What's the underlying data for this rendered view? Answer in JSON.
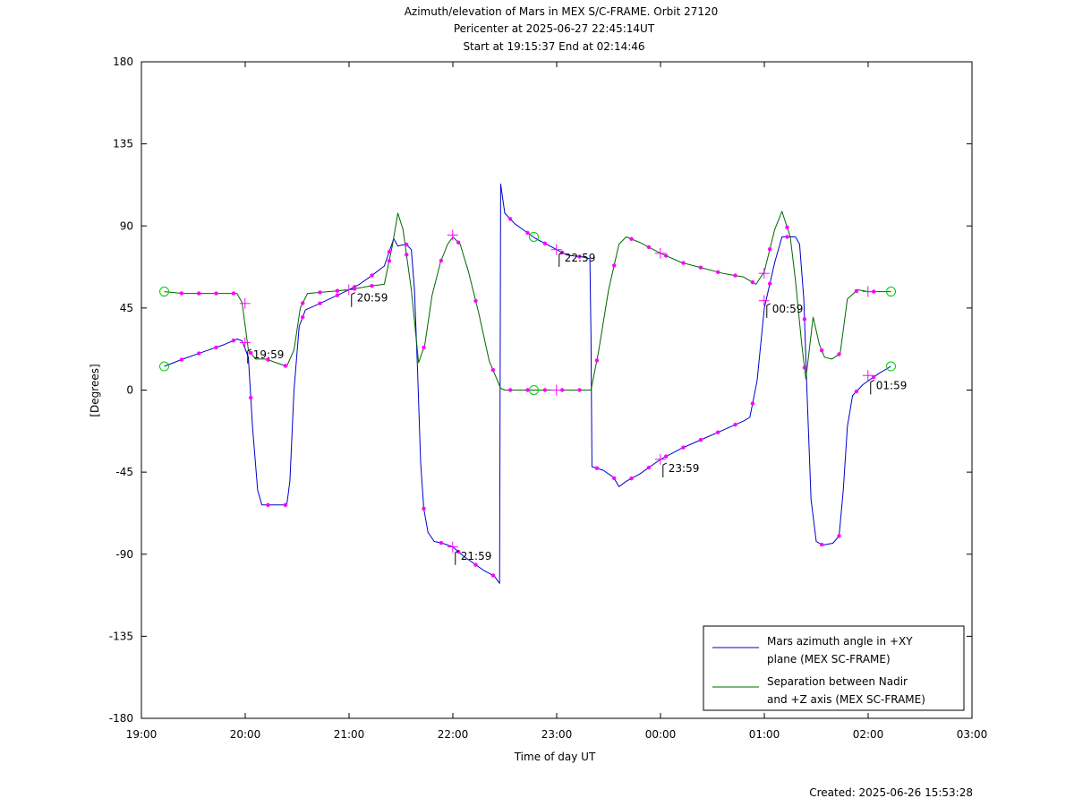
{
  "chart_data": {
    "type": "line",
    "title_lines": [
      "Azimuth/elevation of Mars in MEX S/C-FRAME.  Orbit 27120",
      "Pericenter at 2025-06-27 22:45:14UT",
      "Start at 19:15:37 End at 02:14:46"
    ],
    "xlabel": "Time of day UT",
    "ylabel": "[Degrees]",
    "footer": "Created: 2025-06-26 15:53:28",
    "x_unit": "hours after 19:00 UT",
    "xlim": [
      0,
      8
    ],
    "ylim": [
      -180,
      180
    ],
    "x_ticks": [
      {
        "v": 0,
        "label": "19:00"
      },
      {
        "v": 1,
        "label": "20:00"
      },
      {
        "v": 2,
        "label": "21:00"
      },
      {
        "v": 3,
        "label": "22:00"
      },
      {
        "v": 4,
        "label": "23:00"
      },
      {
        "v": 5,
        "label": "00:00"
      },
      {
        "v": 6,
        "label": "01:00"
      },
      {
        "v": 7,
        "label": "02:00"
      },
      {
        "v": 8,
        "label": "03:00"
      }
    ],
    "y_ticks": [
      {
        "v": 180,
        "label": "180"
      },
      {
        "v": 135,
        "label": "135"
      },
      {
        "v": 90,
        "label": "90"
      },
      {
        "v": 45,
        "label": "45"
      },
      {
        "v": 0,
        "label": "0"
      },
      {
        "v": -45,
        "label": "-45"
      },
      {
        "v": -90,
        "label": "-90"
      },
      {
        "v": -135,
        "label": "-135"
      },
      {
        "v": -180,
        "label": "-180"
      }
    ],
    "legend": {
      "placement": "bottom-right",
      "entries": [
        {
          "lines": [
            "Mars azimuth angle in +XY",
            "plane (MEX SC-FRAME)"
          ],
          "color": "#0000cc"
        },
        {
          "lines": [
            "Separation between Nadir",
            "and +Z axis (MEX SC-FRAME)"
          ],
          "color": "#006600"
        }
      ]
    },
    "series": [
      {
        "name": "Mars azimuth angle in +XY plane (MEX SC-FRAME)",
        "color": "#0000cc",
        "points": [
          [
            0.22,
            13
          ],
          [
            0.4,
            17
          ],
          [
            0.6,
            21
          ],
          [
            0.8,
            25
          ],
          [
            0.92,
            28
          ],
          [
            0.97,
            27
          ],
          [
            1.03,
            18
          ],
          [
            1.07,
            -20
          ],
          [
            1.12,
            -55
          ],
          [
            1.16,
            -63
          ],
          [
            1.3,
            -63
          ],
          [
            1.4,
            -63
          ],
          [
            1.43,
            -50
          ],
          [
            1.47,
            0
          ],
          [
            1.52,
            35
          ],
          [
            1.58,
            44
          ],
          [
            1.7,
            47
          ],
          [
            1.85,
            51
          ],
          [
            2.0,
            55
          ],
          [
            2.1,
            58
          ],
          [
            2.2,
            62
          ],
          [
            2.34,
            68
          ],
          [
            2.4,
            78
          ],
          [
            2.43,
            83
          ],
          [
            2.47,
            79
          ],
          [
            2.55,
            80
          ],
          [
            2.6,
            77
          ],
          [
            2.63,
            55
          ],
          [
            2.66,
            10
          ],
          [
            2.69,
            -40
          ],
          [
            2.72,
            -65
          ],
          [
            2.76,
            -78
          ],
          [
            2.82,
            -83
          ],
          [
            2.9,
            -84
          ],
          [
            3.0,
            -86
          ],
          [
            3.1,
            -91
          ],
          [
            3.2,
            -95
          ],
          [
            3.3,
            -99
          ],
          [
            3.4,
            -102
          ],
          [
            3.45,
            -106
          ],
          [
            3.46,
            113
          ],
          [
            3.5,
            97
          ],
          [
            3.6,
            91
          ],
          [
            3.7,
            87
          ],
          [
            3.8,
            83
          ],
          [
            3.9,
            80
          ],
          [
            4.0,
            77
          ],
          [
            4.1,
            74
          ],
          [
            4.25,
            73
          ],
          [
            4.32,
            72
          ],
          [
            4.33,
            30
          ],
          [
            4.34,
            -42
          ],
          [
            4.45,
            -44
          ],
          [
            4.55,
            -48
          ],
          [
            4.6,
            -53
          ],
          [
            4.67,
            -50
          ],
          [
            4.8,
            -46
          ],
          [
            5.0,
            -38
          ],
          [
            5.2,
            -32
          ],
          [
            5.4,
            -27
          ],
          [
            5.6,
            -22
          ],
          [
            5.8,
            -17
          ],
          [
            5.86,
            -15
          ],
          [
            5.93,
            5
          ],
          [
            6.0,
            45
          ],
          [
            6.1,
            70
          ],
          [
            6.17,
            84
          ],
          [
            6.3,
            84
          ],
          [
            6.34,
            80
          ],
          [
            6.38,
            50
          ],
          [
            6.41,
            0
          ],
          [
            6.45,
            -60
          ],
          [
            6.5,
            -83
          ],
          [
            6.56,
            -85
          ],
          [
            6.66,
            -84
          ],
          [
            6.72,
            -80
          ],
          [
            6.76,
            -55
          ],
          [
            6.8,
            -20
          ],
          [
            6.85,
            -3
          ],
          [
            6.95,
            3
          ],
          [
            7.1,
            9
          ],
          [
            7.22,
            13
          ]
        ]
      },
      {
        "name": "Separation between Nadir and +Z axis (MEX SC-FRAME)",
        "color": "#006600",
        "points": [
          [
            0.22,
            54
          ],
          [
            0.4,
            53
          ],
          [
            0.6,
            53
          ],
          [
            0.8,
            53
          ],
          [
            0.92,
            53
          ],
          [
            0.97,
            48
          ],
          [
            1.03,
            22
          ],
          [
            1.1,
            17
          ],
          [
            1.2,
            17
          ],
          [
            1.3,
            15
          ],
          [
            1.4,
            13
          ],
          [
            1.47,
            22
          ],
          [
            1.53,
            45
          ],
          [
            1.6,
            53
          ],
          [
            1.8,
            54
          ],
          [
            2.0,
            55
          ],
          [
            2.1,
            56
          ],
          [
            2.2,
            57
          ],
          [
            2.34,
            58
          ],
          [
            2.42,
            80
          ],
          [
            2.47,
            97
          ],
          [
            2.52,
            88
          ],
          [
            2.6,
            55
          ],
          [
            2.67,
            15
          ],
          [
            2.73,
            25
          ],
          [
            2.8,
            52
          ],
          [
            2.88,
            70
          ],
          [
            2.95,
            80
          ],
          [
            3.0,
            84
          ],
          [
            3.07,
            80
          ],
          [
            3.15,
            65
          ],
          [
            3.25,
            42
          ],
          [
            3.35,
            16
          ],
          [
            3.46,
            1
          ],
          [
            3.5,
            0
          ],
          [
            4.33,
            0
          ],
          [
            4.4,
            20
          ],
          [
            4.5,
            55
          ],
          [
            4.6,
            80
          ],
          [
            4.67,
            84
          ],
          [
            4.8,
            81
          ],
          [
            5.0,
            75
          ],
          [
            5.2,
            70
          ],
          [
            5.4,
            67
          ],
          [
            5.6,
            64
          ],
          [
            5.8,
            62
          ],
          [
            5.92,
            58
          ],
          [
            6.0,
            65
          ],
          [
            6.1,
            88
          ],
          [
            6.17,
            98
          ],
          [
            6.25,
            84
          ],
          [
            6.3,
            60
          ],
          [
            6.36,
            25
          ],
          [
            6.4,
            6
          ],
          [
            6.47,
            40
          ],
          [
            6.53,
            25
          ],
          [
            6.58,
            18
          ],
          [
            6.65,
            17
          ],
          [
            6.73,
            20
          ],
          [
            6.8,
            50
          ],
          [
            6.9,
            55
          ],
          [
            7.0,
            54
          ],
          [
            7.22,
            54
          ]
        ]
      }
    ],
    "crosses": [
      [
        0.998,
        47.5
      ],
      [
        0.998,
        26
      ],
      [
        1.998,
        55
      ],
      [
        2.998,
        85
      ],
      [
        2.998,
        -86
      ],
      [
        3.998,
        77
      ],
      [
        3.998,
        0
      ],
      [
        4.998,
        75
      ],
      [
        4.998,
        -38
      ],
      [
        5.998,
        64
      ],
      [
        5.998,
        49
      ],
      [
        6.998,
        54
      ],
      [
        6.998,
        8
      ]
    ],
    "circles": [
      [
        0.22,
        54
      ],
      [
        0.22,
        13
      ],
      [
        3.78,
        84
      ],
      [
        3.78,
        0
      ],
      [
        7.22,
        54
      ],
      [
        7.22,
        13
      ]
    ],
    "annotations": [
      {
        "x": 0.998,
        "y": 19.5,
        "label": "19:59"
      },
      {
        "x": 1.998,
        "y": 50.5,
        "label": "20:59"
      },
      {
        "x": 2.998,
        "y": -91,
        "label": "21:59"
      },
      {
        "x": 3.998,
        "y": 72.5,
        "label": "22:59"
      },
      {
        "x": 4.998,
        "y": -43,
        "label": "23:59"
      },
      {
        "x": 5.998,
        "y": 44.5,
        "label": "00:59"
      },
      {
        "x": 6.998,
        "y": 2.5,
        "label": "01:59"
      }
    ]
  }
}
